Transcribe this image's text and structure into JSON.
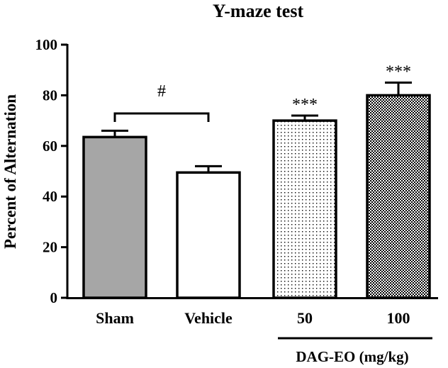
{
  "chart_data": {
    "type": "bar",
    "title": "Y-maze test",
    "ylabel": "Percent of Alternation",
    "xlabel": "",
    "ylim": [
      0,
      100
    ],
    "yticks": [
      0,
      20,
      40,
      60,
      80,
      100
    ],
    "categories": [
      "Sham",
      "Vehicle",
      "50",
      "100"
    ],
    "values": [
      63.5,
      49.5,
      70,
      80
    ],
    "errors": [
      2.5,
      2.5,
      2,
      5
    ],
    "fills": [
      "solid-gray",
      "white",
      "light-dots",
      "dense-dots"
    ],
    "annotations": [
      {
        "text": "#",
        "type": "bracket",
        "between": [
          "Sham",
          "Vehicle"
        ]
      },
      {
        "text": "***",
        "category": "50"
      },
      {
        "text": "***",
        "category": "100"
      }
    ],
    "group_label": {
      "text": "DAG-EO (mg/kg)",
      "covers": [
        "50",
        "100"
      ]
    },
    "colors": {
      "sham": "#a6a6a6",
      "axis": "#000000",
      "background": "#ffffff"
    }
  }
}
